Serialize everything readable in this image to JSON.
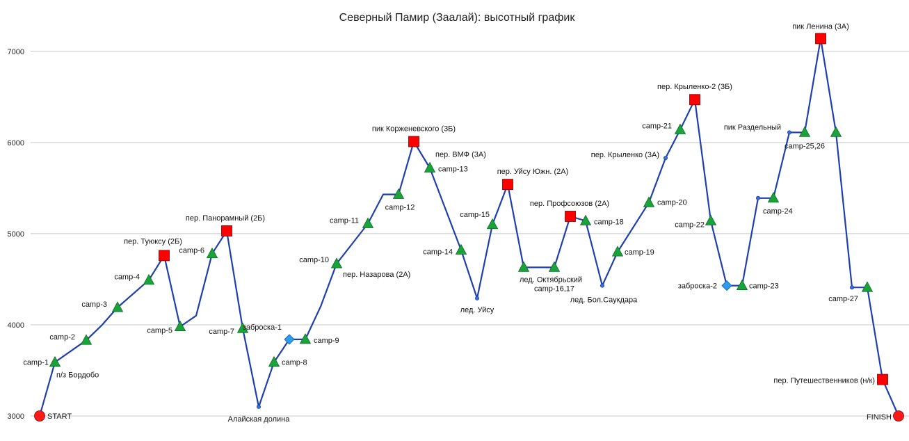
{
  "chart_data": {
    "type": "line",
    "title": "Северный Памир (Заалай): высотный график",
    "xlabel": "",
    "ylabel": "",
    "ylim": [
      3000,
      7250
    ],
    "yticks": [
      3000,
      4000,
      5000,
      6000,
      7000
    ],
    "grid": true,
    "legend": "none",
    "colors": {
      "line": "#1f3fb0",
      "camp": "#1aa33a",
      "pass": "#ff0000",
      "cache": "#2b9bf0",
      "endpoint": "#ff1a1a",
      "point": "#1f3fb0"
    },
    "series": [
      {
        "points": [
          {
            "x": 0,
            "y": 3000,
            "marker": "circle",
            "label": "START"
          },
          {
            "x": 1,
            "y": 3590,
            "marker": "triangle",
            "label": "camp-1"
          },
          {
            "x": 2,
            "y": 3830,
            "marker": "triangle",
            "label": "camp-2"
          },
          {
            "x": 3,
            "y": 4000,
            "marker": "none",
            "label": ""
          },
          {
            "x": 4,
            "y": 4190,
            "marker": "triangle",
            "label": "camp-3"
          },
          {
            "x": 5,
            "y": 4490,
            "marker": "triangle",
            "label": "camp-4"
          },
          {
            "x": 6,
            "y": 4760,
            "marker": "square",
            "label": "пер. Туюксу (2Б)"
          },
          {
            "x": 7,
            "y": 3980,
            "marker": "triangle",
            "label": "camp-5"
          },
          {
            "x": 8,
            "y": 4100,
            "marker": "none",
            "label": ""
          },
          {
            "x": 9,
            "y": 4780,
            "marker": "triangle",
            "label": "camp-6"
          },
          {
            "x": 10,
            "y": 5030,
            "marker": "square",
            "label": "пер. Панорамный  (2Б)"
          },
          {
            "x": 11,
            "y": 3960,
            "marker": "triangle",
            "label": "camp-7"
          },
          {
            "x": 12,
            "y": 3100,
            "marker": "point",
            "label": "Алайская долина"
          },
          {
            "x": 13,
            "y": 3590,
            "marker": "triangle",
            "label": "camp-8"
          },
          {
            "x": 14,
            "y": 3840,
            "marker": "diamond",
            "label": "заброска-1"
          },
          {
            "x": 15,
            "y": 3840,
            "marker": "triangle",
            "label": "camp-9"
          },
          {
            "x": 16,
            "y": 4200,
            "marker": "none",
            "label": ""
          },
          {
            "x": 17,
            "y": 4670,
            "marker": "triangle",
            "label": "camp-10"
          },
          {
            "x": 18,
            "y": 5110,
            "marker": "triangle",
            "label": "camp-11"
          },
          {
            "x": 19,
            "y": 5430,
            "marker": "none",
            "label": ""
          },
          {
            "x": 20,
            "y": 5430,
            "marker": "triangle",
            "label": "camp-12"
          },
          {
            "x": 21,
            "y": 6010,
            "marker": "square",
            "label": "пик Корженевского (3Б)"
          },
          {
            "x": 22,
            "y": 5720,
            "marker": "triangle",
            "label": "camp-13"
          },
          {
            "x": 23,
            "y": 4820,
            "marker": "triangle",
            "label": "camp-14"
          },
          {
            "x": 24,
            "y": 4290,
            "marker": "point",
            "label": "лед. Уйсу"
          },
          {
            "x": 25,
            "y": 5100,
            "marker": "triangle",
            "label": "camp-15"
          },
          {
            "x": 26,
            "y": 5540,
            "marker": "square",
            "label": "пер. Уйсу Южн. (2А)"
          },
          {
            "x": 27,
            "y": 4630,
            "marker": "triangle",
            "label": ""
          },
          {
            "x": 28,
            "y": 4630,
            "marker": "triangle",
            "label": "camp-16,17"
          },
          {
            "x": 29,
            "y": 5190,
            "marker": "square",
            "label": "пер. Профсоюзов  (2А)"
          },
          {
            "x": 30,
            "y": 5140,
            "marker": "triangle",
            "label": "camp-18"
          },
          {
            "x": 31,
            "y": 4430,
            "marker": "point",
            "label": "лед. Бол.Саукдара"
          },
          {
            "x": 32,
            "y": 4800,
            "marker": "triangle",
            "label": "camp-19"
          },
          {
            "x": 33,
            "y": 5340,
            "marker": "triangle",
            "label": "camp-20"
          },
          {
            "x": 34,
            "y": 5830,
            "marker": "point",
            "label": "пер. Крыленко (3А)"
          },
          {
            "x": 35,
            "y": 6140,
            "marker": "triangle",
            "label": "camp-21"
          },
          {
            "x": 36,
            "y": 6470,
            "marker": "square",
            "label": "пер. Крыленко-2 (3Б)"
          },
          {
            "x": 37,
            "y": 5140,
            "marker": "triangle",
            "label": "camp-22"
          },
          {
            "x": 38,
            "y": 4430,
            "marker": "diamond",
            "label": "заброска-2"
          },
          {
            "x": 39,
            "y": 4430,
            "marker": "triangle",
            "label": "camp-23"
          },
          {
            "x": 40,
            "y": 5390,
            "marker": "point",
            "label": ""
          },
          {
            "x": 41,
            "y": 5390,
            "marker": "triangle",
            "label": "camp-24"
          },
          {
            "x": 42,
            "y": 6110,
            "marker": "point",
            "label": "пик Раздельный"
          },
          {
            "x": 43,
            "y": 6110,
            "marker": "triangle",
            "label": "camp-25,26"
          },
          {
            "x": 44,
            "y": 7140,
            "marker": "square",
            "label": "пик Ленина (3А)"
          },
          {
            "x": 45,
            "y": 6110,
            "marker": "triangle",
            "label": ""
          },
          {
            "x": 46,
            "y": 4410,
            "marker": "point",
            "label": ""
          },
          {
            "x": 47,
            "y": 4410,
            "marker": "triangle",
            "label": "camp-27"
          },
          {
            "x": 48,
            "y": 3400,
            "marker": "square",
            "label": "пер. Путешественников (н/к)"
          },
          {
            "x": 49,
            "y": 3000,
            "marker": "circle",
            "label": "FINISH"
          }
        ]
      }
    ],
    "annotations": [
      {
        "text": "п/з Бордобо",
        "x": 1,
        "y": 3590
      },
      {
        "text": "пер. Назарова (2А)",
        "x": 17,
        "y": 4670
      },
      {
        "text": "пер. ВМФ (3А)",
        "x": 22,
        "y": 5720
      },
      {
        "text": "лед. Октябрьский",
        "x": 27,
        "y": 4630
      }
    ]
  }
}
